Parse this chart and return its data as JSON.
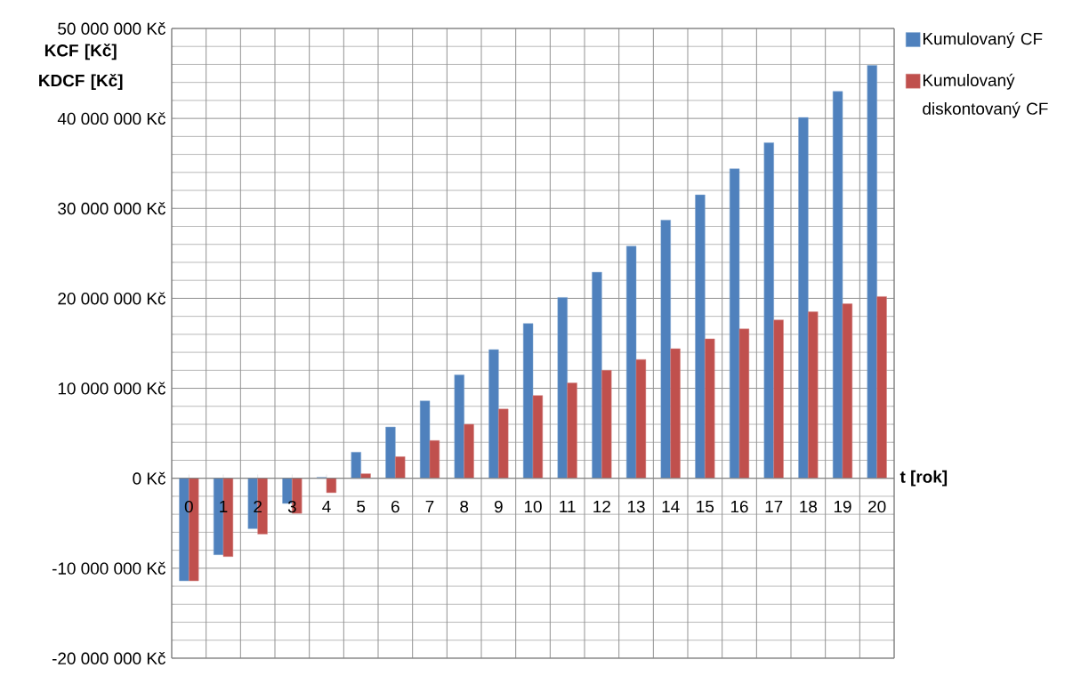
{
  "chart_data": {
    "type": "bar",
    "ylabel": "KCF [Kč] KDCF [Kč]",
    "xlabel": "t [rok]",
    "categories": [
      "0",
      "1",
      "2",
      "3",
      "4",
      "5",
      "6",
      "7",
      "8",
      "9",
      "10",
      "11",
      "12",
      "13",
      "14",
      "15",
      "16",
      "17",
      "18",
      "19",
      "20"
    ],
    "series": [
      {
        "name": "Kumulovaný CF",
        "color": "#4f81bd",
        "values": [
          -11400000,
          -8500000,
          -5600000,
          -2800000,
          100000,
          2900000,
          5700000,
          8600000,
          11500000,
          14300000,
          17200000,
          20100000,
          22900000,
          25800000,
          28700000,
          31500000,
          34400000,
          37300000,
          40100000,
          43000000,
          45900000
        ]
      },
      {
        "name": "Kumulovaný diskontovaný CF",
        "color": "#c0504d",
        "values": [
          -11400000,
          -8700000,
          -6200000,
          -3900000,
          -1600000,
          500000,
          2400000,
          4200000,
          6000000,
          7700000,
          9200000,
          10600000,
          12000000,
          13200000,
          14400000,
          15500000,
          16600000,
          17600000,
          18500000,
          19400000,
          20200000
        ]
      }
    ],
    "ylim": [
      -20000000,
      50000000
    ],
    "yticks": [
      {
        "value": -20000000,
        "label": "-20 000 000 Kč"
      },
      {
        "value": -10000000,
        "label": "-10 000 000 Kč"
      },
      {
        "value": 0,
        "label": "0 Kč"
      },
      {
        "value": 10000000,
        "label": "10 000 000 Kč"
      },
      {
        "value": 20000000,
        "label": "20 000 000 Kč"
      },
      {
        "value": 30000000,
        "label": "30 000 000 Kč"
      },
      {
        "value": 40000000,
        "label": "40 000 000 Kč"
      },
      {
        "value": 50000000,
        "label": "50 000 000 Kč"
      }
    ],
    "grid": true,
    "legend": "right"
  }
}
